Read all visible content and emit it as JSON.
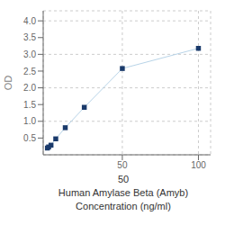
{
  "chart_data": {
    "type": "line",
    "x": [
      0.78,
      1.56,
      3.13,
      6.25,
      12.5,
      25,
      50,
      100
    ],
    "series": [
      {
        "type": "line",
        "color": "#b8d4e8",
        "values": [
          0.202,
          0.234,
          0.287,
          0.476,
          0.809,
          1.418,
          2.577,
          3.179
        ]
      },
      {
        "type": "scatter",
        "marker": "square",
        "color": "#1a3a6b",
        "values": [
          0.202,
          0.234,
          0.287,
          0.476,
          0.809,
          1.418,
          2.577,
          3.179
        ]
      }
    ],
    "ylabel": "OD",
    "xlabel": [
      "Human Amylase Beta (Amyb)",
      "Concentration (ng/ml)"
    ],
    "annotations": [
      "50"
    ],
    "xlim": [
      -2,
      108
    ],
    "ylim": [
      0,
      4.3
    ],
    "xticks": [
      50,
      100
    ],
    "yticks": [
      0.5,
      {
        "value": 1.0,
        "label": "1.0"
      },
      1.5,
      {
        "value": 2.0,
        "label": "2.0"
      },
      2.5,
      {
        "value": 3.0,
        "label": "3.0"
      },
      3.5,
      {
        "value": 4.0,
        "label": "4.0"
      }
    ],
    "grid": true
  }
}
